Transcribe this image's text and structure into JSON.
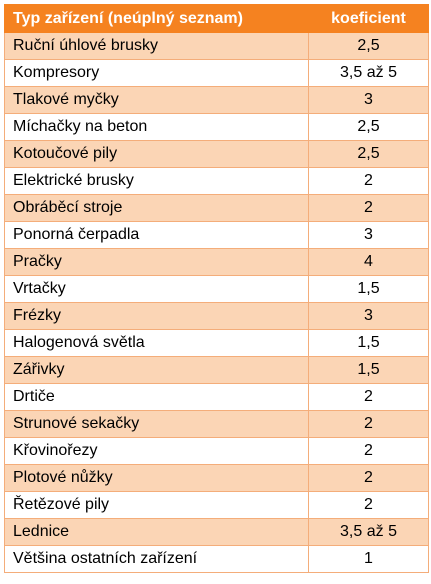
{
  "table": {
    "headers": {
      "device": "Typ zařízení (neúplný seznam)",
      "coef": "koeficient"
    },
    "rows": [
      {
        "device": "Ruční úhlové brusky",
        "coef": "2,5"
      },
      {
        "device": "Kompresory",
        "coef": "3,5 až 5"
      },
      {
        "device": "Tlakové myčky",
        "coef": "3"
      },
      {
        "device": "Míchačky na beton",
        "coef": "2,5"
      },
      {
        "device": "Kotoučové pily",
        "coef": "2,5"
      },
      {
        "device": "Elektrické brusky",
        "coef": "2"
      },
      {
        "device": "Obráběcí stroje",
        "coef": "2"
      },
      {
        "device": "Ponorná čerpadla",
        "coef": "3"
      },
      {
        "device": "Pračky",
        "coef": "4"
      },
      {
        "device": "Vrtačky",
        "coef": "1,5"
      },
      {
        "device": "Frézky",
        "coef": "3"
      },
      {
        "device": "Halogenová světla",
        "coef": "1,5"
      },
      {
        "device": "Zářivky",
        "coef": "1,5"
      },
      {
        "device": "Drtiče",
        "coef": "2"
      },
      {
        "device": "Strunové sekačky",
        "coef": "2"
      },
      {
        "device": "Křovinořezy",
        "coef": "2"
      },
      {
        "device": "Plotové nůžky",
        "coef": "2"
      },
      {
        "device": "Řetězové pily",
        "coef": "2"
      },
      {
        "device": "Lednice",
        "coef": "3,5 až 5"
      },
      {
        "device": "Většina ostatních zařízení",
        "coef": "1"
      }
    ],
    "colors": {
      "header_bg": "#f58220",
      "header_text": "#ffffff",
      "band_bg": "#fbd5b5",
      "row_bg": "#ffffff",
      "grid": "#f4ad7a"
    }
  }
}
